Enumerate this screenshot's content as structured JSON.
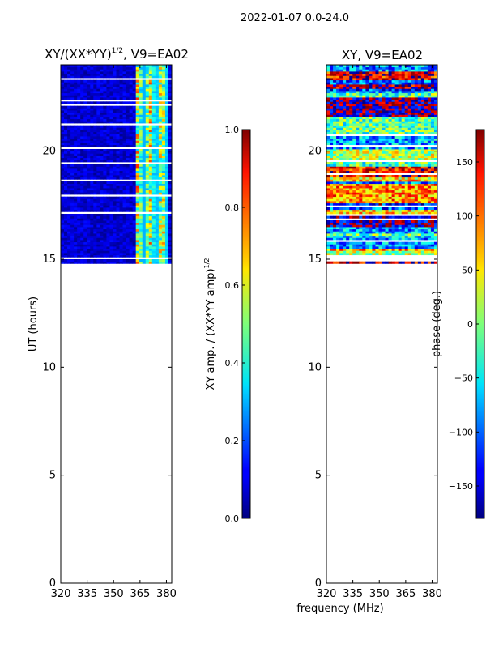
{
  "figure": {
    "suptitle": "2022-01-07 0.0-24.0",
    "xlabel_shared": "frequency (MHz)"
  },
  "chart_data": [
    {
      "type": "heatmap",
      "title_main": "XY/(XX*YY)",
      "title_sup": "1/2",
      "title_tail": ", V9=EA02",
      "xlabel": "",
      "ylabel": "UT (hours)",
      "xlim": [
        320,
        383
      ],
      "ylim": [
        0,
        24
      ],
      "xticks": [
        "320",
        "335",
        "350",
        "365",
        "380"
      ],
      "xtick_values": [
        320,
        335,
        350,
        365,
        380
      ],
      "yticks": [
        "0",
        "5",
        "10",
        "15",
        "20"
      ],
      "ytick_values": [
        0,
        5,
        10,
        15,
        20
      ],
      "data_ut_range": [
        14.8,
        24.0
      ],
      "description_values": "normalized amplitude mostly 0.0-0.1 below ~360 MHz; 0.3-0.9 stripes between ~362 and ~382 MHz",
      "colorbar": {
        "label_main": "XY amp. / (XX*YY amp)",
        "label_sup": "1/2",
        "range": [
          0.0,
          1.0
        ],
        "ticks": [
          "0.0",
          "0.2",
          "0.4",
          "0.6",
          "0.8",
          "1.0"
        ],
        "tick_values": [
          0.0,
          0.2,
          0.4,
          0.6,
          0.8,
          1.0
        ]
      }
    },
    {
      "type": "heatmap",
      "title": "XY, V9=EA02",
      "xlabel": "frequency (MHz)",
      "ylabel": "",
      "xlim": [
        320,
        383
      ],
      "ylim": [
        0,
        24
      ],
      "xticks": [
        "320",
        "335",
        "350",
        "365",
        "380"
      ],
      "xtick_values": [
        320,
        335,
        350,
        365,
        380
      ],
      "yticks": [
        "0",
        "5",
        "10",
        "15",
        "20"
      ],
      "ytick_values": [
        0,
        5,
        10,
        15,
        20
      ],
      "data_ut_range": [
        14.8,
        24.0
      ],
      "description_values": "phase varies across full range -180..180 deg in horizontal time-bands",
      "colorbar": {
        "label": "phase (deg.)",
        "range": [
          -180,
          180
        ],
        "ticks": [
          "−150",
          "−100",
          "−50",
          "0",
          "50",
          "100",
          "150"
        ],
        "tick_values": [
          -150,
          -100,
          -50,
          0,
          50,
          100,
          150
        ]
      }
    }
  ]
}
